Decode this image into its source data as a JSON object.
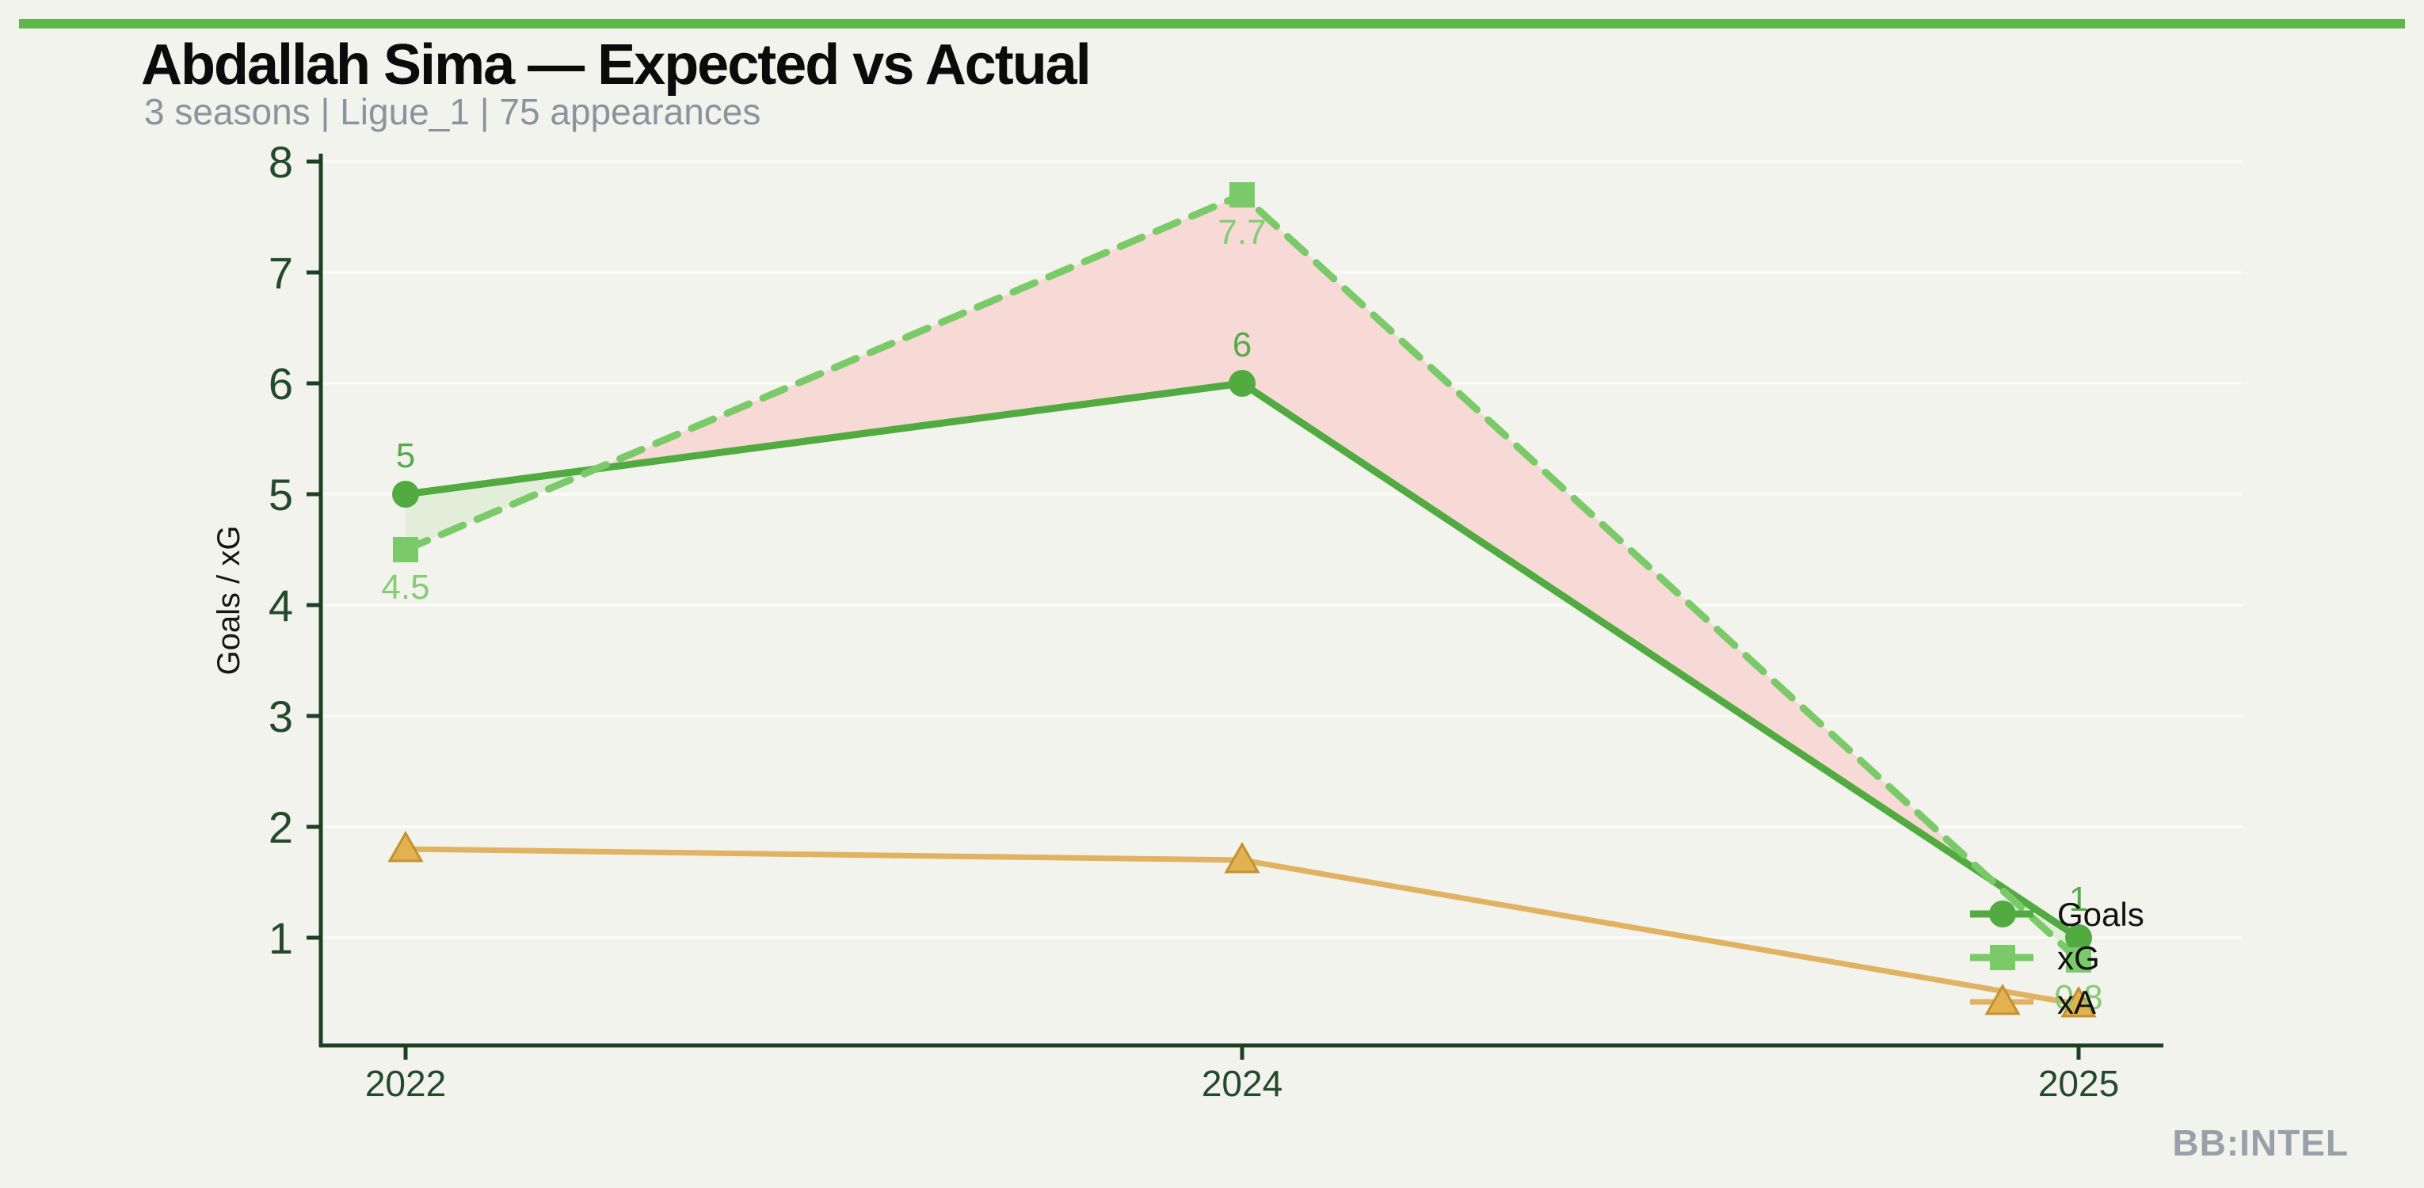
{
  "page": {
    "background": "#f2f3ec",
    "top_bar_color": "#5cb84b",
    "watermark": "BB:INTEL",
    "watermark_color": "#9aa0a9"
  },
  "header": {
    "title": "Abdallah Sima — Expected vs Actual",
    "title_color": "#0b0b0b",
    "subtitle": "3 seasons | Ligue_1 | 75 appearances",
    "subtitle_color": "#8d939e"
  },
  "chart_data": {
    "type": "line",
    "title": "Abdallah Sima — Expected vs Actual",
    "subtitle": "3 seasons | Ligue_1 | 75 appearances",
    "x_tick_labels": [
      "2022",
      "2024",
      "2025"
    ],
    "ylabel": "Goals / xG",
    "ylabel_color": "#161616",
    "ylim": [
      0,
      8.2
    ],
    "yticks": [
      1,
      2,
      3,
      4,
      5,
      6,
      7,
      8
    ],
    "grid": "horizontal-faint",
    "grid_color": "rgba(255,255,255,0.7)",
    "axis_color": "#1d4023",
    "tick_label_color": "#24492b",
    "series": [
      {
        "name": "Goals",
        "values": [
          5,
          6,
          1
        ],
        "color": "#52ab41",
        "marker": "circle",
        "line_style": "solid",
        "line_width": 9,
        "point_labels": [
          "5",
          "6",
          "1"
        ],
        "point_label_color": "#57aa4b",
        "point_label_side": "above"
      },
      {
        "name": "xG",
        "values": [
          4.5,
          7.7,
          0.8
        ],
        "color": "#7bca6a",
        "marker": "square",
        "line_style": "dashed",
        "line_width": 9,
        "point_labels": [
          "4.5",
          "7.7",
          "0.8"
        ],
        "point_label_color": "#85cc74",
        "point_label_side": "below"
      },
      {
        "name": "xA",
        "values": [
          1.8,
          1.7,
          0.4
        ],
        "color": "#e0b261",
        "marker": "triangle",
        "marker_fill": "#e2b252",
        "marker_edge": "#c3922e",
        "line_style": "solid",
        "line_width": 7,
        "point_labels": [
          "",
          "",
          ""
        ],
        "point_label_color": "#e0b261",
        "point_label_side": "none"
      }
    ],
    "fill_between": {
      "pair": [
        "Goals",
        "xG"
      ],
      "positive_color": "#e3eeda",
      "positive_meaning": "Goals above xG",
      "negative_color": "#f7d9d5",
      "negative_meaning": "xG above Goals"
    },
    "legend": {
      "position": "right-inside",
      "entries": [
        "Goals",
        "xG",
        "xA"
      ],
      "label_color": "#111111"
    }
  }
}
